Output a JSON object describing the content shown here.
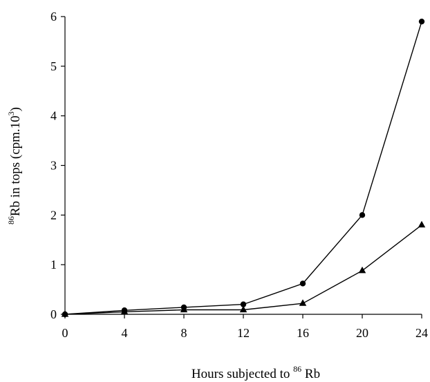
{
  "chart_data": {
    "type": "line",
    "x": [
      0,
      4,
      8,
      12,
      16,
      20,
      24
    ],
    "xlim": [
      0,
      24
    ],
    "ylim": [
      0,
      6
    ],
    "x_ticks": [
      0,
      4,
      8,
      12,
      16,
      20,
      24
    ],
    "y_ticks": [
      0,
      1,
      2,
      3,
      4,
      5,
      6
    ],
    "x_tick_labels": [
      "0",
      "4",
      "8",
      "12",
      "16",
      "20",
      "24"
    ],
    "y_tick_labels": [
      "0",
      "1",
      "2",
      "3",
      "4",
      "5",
      "6"
    ],
    "grid": false,
    "xlabel": {
      "prefix": "Hours subjected to ",
      "superscript": "86",
      "suffix": " Rb"
    },
    "ylabel": {
      "superscript": "86",
      "main": "Rb in tops (cpm.10",
      "exponent": "3",
      "close": ")"
    },
    "series": [
      {
        "marker": "circle",
        "values": [
          0,
          0.08,
          0.14,
          0.2,
          0.62,
          2.0,
          5.9
        ]
      },
      {
        "marker": "triangle",
        "values": [
          0,
          0.05,
          0.09,
          0.09,
          0.22,
          0.88,
          1.8
        ]
      }
    ]
  }
}
